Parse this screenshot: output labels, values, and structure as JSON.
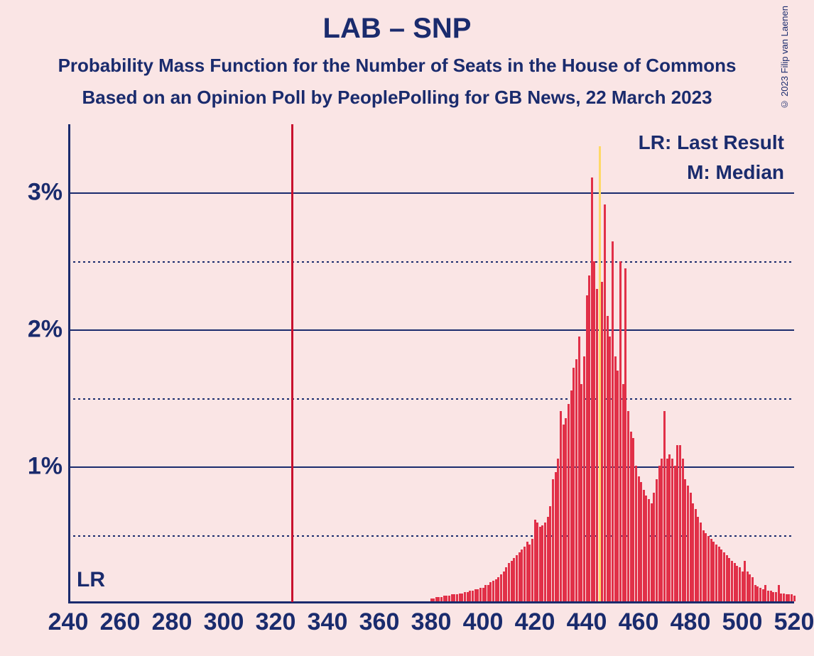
{
  "title": "LAB – SNP",
  "subtitle1": "Probability Mass Function for the Number of Seats in the House of Commons",
  "subtitle2": "Based on an Opinion Poll by PeoplePolling for GB News, 22 March 2023",
  "copyright": "© 2023 Filip van Laenen",
  "legend": {
    "lr": "LR: Last Result",
    "m": "M: Median"
  },
  "lr_label": "LR",
  "chart": {
    "type": "bar",
    "background_color": "#fae5e5",
    "text_color": "#1a2b6d",
    "bar_color_main": "#e13048",
    "bar_color_median": "#ffd966",
    "lr_line_color": "#c8102e",
    "xlim": [
      240,
      520
    ],
    "xtick_step": 20,
    "x_labels": [
      "240",
      "260",
      "280",
      "300",
      "320",
      "340",
      "360",
      "380",
      "400",
      "420",
      "440",
      "460",
      "480",
      "500",
      "520"
    ],
    "ylim": [
      0,
      3.5
    ],
    "ytick_step_major": 1,
    "ytick_step_minor": 0.5,
    "y_labels_major": [
      "1%",
      "2%",
      "3%"
    ],
    "lr_value": 326,
    "median_value": 445,
    "title_fontsize": 40,
    "subtitle_fontsize": 26,
    "axis_label_fontsize": 34,
    "legend_fontsize": 28,
    "bars": [
      {
        "x": 380,
        "y": 0.02
      },
      {
        "x": 381,
        "y": 0.02
      },
      {
        "x": 382,
        "y": 0.03
      },
      {
        "x": 383,
        "y": 0.03
      },
      {
        "x": 384,
        "y": 0.03
      },
      {
        "x": 385,
        "y": 0.04
      },
      {
        "x": 386,
        "y": 0.04
      },
      {
        "x": 387,
        "y": 0.04
      },
      {
        "x": 388,
        "y": 0.05
      },
      {
        "x": 389,
        "y": 0.05
      },
      {
        "x": 390,
        "y": 0.05
      },
      {
        "x": 391,
        "y": 0.06
      },
      {
        "x": 392,
        "y": 0.06
      },
      {
        "x": 393,
        "y": 0.07
      },
      {
        "x": 394,
        "y": 0.07
      },
      {
        "x": 395,
        "y": 0.08
      },
      {
        "x": 396,
        "y": 0.08
      },
      {
        "x": 397,
        "y": 0.09
      },
      {
        "x": 398,
        "y": 0.09
      },
      {
        "x": 399,
        "y": 0.1
      },
      {
        "x": 400,
        "y": 0.1
      },
      {
        "x": 401,
        "y": 0.12
      },
      {
        "x": 402,
        "y": 0.12
      },
      {
        "x": 403,
        "y": 0.14
      },
      {
        "x": 404,
        "y": 0.15
      },
      {
        "x": 405,
        "y": 0.16
      },
      {
        "x": 406,
        "y": 0.18
      },
      {
        "x": 407,
        "y": 0.2
      },
      {
        "x": 408,
        "y": 0.22
      },
      {
        "x": 409,
        "y": 0.25
      },
      {
        "x": 410,
        "y": 0.28
      },
      {
        "x": 411,
        "y": 0.3
      },
      {
        "x": 412,
        "y": 0.32
      },
      {
        "x": 413,
        "y": 0.34
      },
      {
        "x": 414,
        "y": 0.36
      },
      {
        "x": 415,
        "y": 0.38
      },
      {
        "x": 416,
        "y": 0.4
      },
      {
        "x": 417,
        "y": 0.44
      },
      {
        "x": 418,
        "y": 0.42
      },
      {
        "x": 419,
        "y": 0.46
      },
      {
        "x": 420,
        "y": 0.6
      },
      {
        "x": 421,
        "y": 0.58
      },
      {
        "x": 422,
        "y": 0.55
      },
      {
        "x": 423,
        "y": 0.56
      },
      {
        "x": 424,
        "y": 0.58
      },
      {
        "x": 425,
        "y": 0.62
      },
      {
        "x": 426,
        "y": 0.7
      },
      {
        "x": 427,
        "y": 0.9
      },
      {
        "x": 428,
        "y": 0.95
      },
      {
        "x": 429,
        "y": 1.05
      },
      {
        "x": 430,
        "y": 1.4
      },
      {
        "x": 431,
        "y": 1.3
      },
      {
        "x": 432,
        "y": 1.35
      },
      {
        "x": 433,
        "y": 1.45
      },
      {
        "x": 434,
        "y": 1.55
      },
      {
        "x": 435,
        "y": 1.72
      },
      {
        "x": 436,
        "y": 1.78
      },
      {
        "x": 437,
        "y": 1.95
      },
      {
        "x": 438,
        "y": 1.6
      },
      {
        "x": 439,
        "y": 1.8
      },
      {
        "x": 440,
        "y": 2.25
      },
      {
        "x": 441,
        "y": 2.4
      },
      {
        "x": 442,
        "y": 3.12
      },
      {
        "x": 443,
        "y": 2.5
      },
      {
        "x": 444,
        "y": 2.3
      },
      {
        "x": 445,
        "y": 3.35
      },
      {
        "x": 446,
        "y": 2.35
      },
      {
        "x": 447,
        "y": 2.92
      },
      {
        "x": 448,
        "y": 2.1
      },
      {
        "x": 449,
        "y": 1.95
      },
      {
        "x": 450,
        "y": 2.65
      },
      {
        "x": 451,
        "y": 1.8
      },
      {
        "x": 452,
        "y": 1.7
      },
      {
        "x": 453,
        "y": 2.5
      },
      {
        "x": 454,
        "y": 1.6
      },
      {
        "x": 455,
        "y": 2.45
      },
      {
        "x": 456,
        "y": 1.4
      },
      {
        "x": 457,
        "y": 1.25
      },
      {
        "x": 458,
        "y": 1.2
      },
      {
        "x": 459,
        "y": 1.0
      },
      {
        "x": 460,
        "y": 0.92
      },
      {
        "x": 461,
        "y": 0.88
      },
      {
        "x": 462,
        "y": 0.82
      },
      {
        "x": 463,
        "y": 0.78
      },
      {
        "x": 464,
        "y": 0.75
      },
      {
        "x": 465,
        "y": 0.72
      },
      {
        "x": 466,
        "y": 0.8
      },
      {
        "x": 467,
        "y": 0.9
      },
      {
        "x": 468,
        "y": 1.0
      },
      {
        "x": 469,
        "y": 1.05
      },
      {
        "x": 470,
        "y": 1.4
      },
      {
        "x": 471,
        "y": 1.05
      },
      {
        "x": 472,
        "y": 1.08
      },
      {
        "x": 473,
        "y": 1.05
      },
      {
        "x": 474,
        "y": 1.0
      },
      {
        "x": 475,
        "y": 1.15
      },
      {
        "x": 476,
        "y": 1.15
      },
      {
        "x": 477,
        "y": 1.05
      },
      {
        "x": 478,
        "y": 0.9
      },
      {
        "x": 479,
        "y": 0.85
      },
      {
        "x": 480,
        "y": 0.8
      },
      {
        "x": 481,
        "y": 0.72
      },
      {
        "x": 482,
        "y": 0.68
      },
      {
        "x": 483,
        "y": 0.62
      },
      {
        "x": 484,
        "y": 0.58
      },
      {
        "x": 485,
        "y": 0.52
      },
      {
        "x": 486,
        "y": 0.5
      },
      {
        "x": 487,
        "y": 0.48
      },
      {
        "x": 488,
        "y": 0.46
      },
      {
        "x": 489,
        "y": 0.44
      },
      {
        "x": 490,
        "y": 0.42
      },
      {
        "x": 491,
        "y": 0.4
      },
      {
        "x": 492,
        "y": 0.38
      },
      {
        "x": 493,
        "y": 0.36
      },
      {
        "x": 494,
        "y": 0.34
      },
      {
        "x": 495,
        "y": 0.32
      },
      {
        "x": 496,
        "y": 0.3
      },
      {
        "x": 497,
        "y": 0.28
      },
      {
        "x": 498,
        "y": 0.26
      },
      {
        "x": 499,
        "y": 0.25
      },
      {
        "x": 500,
        "y": 0.22
      },
      {
        "x": 501,
        "y": 0.3
      },
      {
        "x": 502,
        "y": 0.22
      },
      {
        "x": 503,
        "y": 0.2
      },
      {
        "x": 504,
        "y": 0.18
      },
      {
        "x": 505,
        "y": 0.12
      },
      {
        "x": 506,
        "y": 0.11
      },
      {
        "x": 507,
        "y": 0.1
      },
      {
        "x": 508,
        "y": 0.09
      },
      {
        "x": 509,
        "y": 0.12
      },
      {
        "x": 510,
        "y": 0.08
      },
      {
        "x": 511,
        "y": 0.08
      },
      {
        "x": 512,
        "y": 0.07
      },
      {
        "x": 513,
        "y": 0.07
      },
      {
        "x": 514,
        "y": 0.12
      },
      {
        "x": 515,
        "y": 0.06
      },
      {
        "x": 516,
        "y": 0.06
      },
      {
        "x": 517,
        "y": 0.05
      },
      {
        "x": 518,
        "y": 0.05
      },
      {
        "x": 519,
        "y": 0.05
      },
      {
        "x": 520,
        "y": 0.04
      }
    ]
  }
}
